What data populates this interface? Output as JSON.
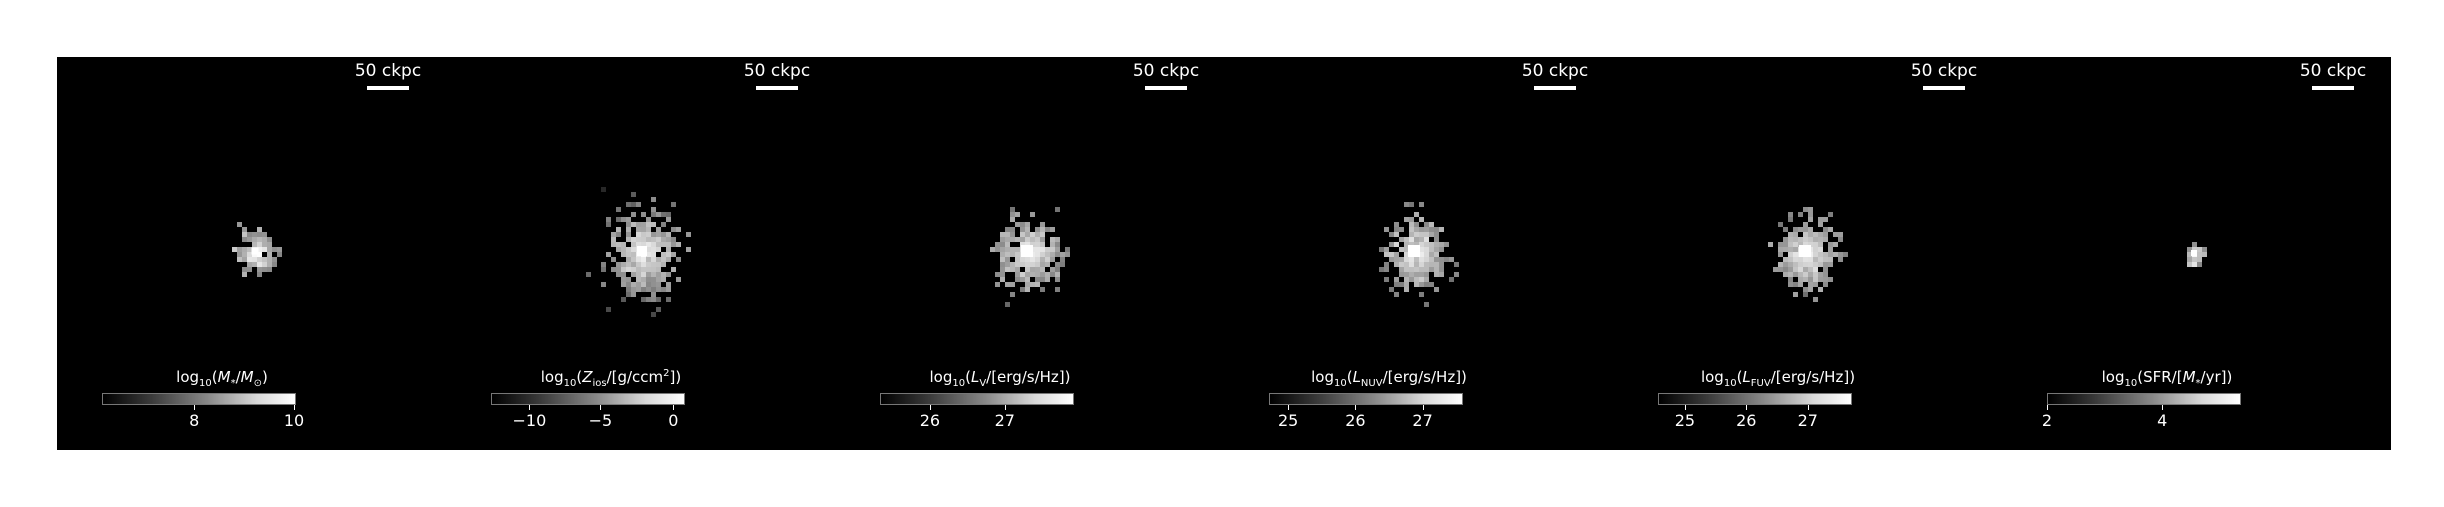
{
  "panels": [
    {
      "scalebar": "50 ckpc",
      "colorbar_label_html": "log<sub>10</sub>(<i>M</i><sub>*</sub>/<i>M</i><sub>⊙</sub>)",
      "ticks": [
        {
          "label": "8",
          "frac": 0.48
        },
        {
          "label": "10",
          "frac": 1.0
        }
      ],
      "map": {
        "cx": 198,
        "cy": 194,
        "core": 7,
        "halo": 20,
        "spread": 30,
        "n": 70,
        "seed": 3
      }
    },
    {
      "scalebar": "50 ckpc",
      "colorbar_label_html": "log<sub>10</sub>(<i>Z</i><sub>ios</sub>/[g/ccm<sup>2</sup>])",
      "ticks": [
        {
          "label": "−10",
          "frac": 0.2
        },
        {
          "label": "−5",
          "frac": 0.57
        },
        {
          "label": "0",
          "frac": 0.95
        }
      ],
      "map": {
        "cx": 196,
        "cy": 194,
        "core": 10,
        "halo": 35,
        "spread": 60,
        "n": 330,
        "seed": 11
      }
    },
    {
      "scalebar": "50 ckpc",
      "colorbar_label_html": "log<sub>10</sub>(<i>L</i><sub>V</sub>/[erg/s/Hz])",
      "ticks": [
        {
          "label": "26",
          "frac": 0.26
        },
        {
          "label": "27",
          "frac": 0.65
        }
      ],
      "map": {
        "cx": 192,
        "cy": 194,
        "core": 12,
        "halo": 30,
        "spread": 50,
        "n": 270,
        "seed": 21
      }
    },
    {
      "scalebar": "50 ckpc",
      "colorbar_label_html": "log<sub>10</sub>(<i>L</i><sub>NUV</sub>/[erg/s/Hz])",
      "ticks": [
        {
          "label": "25",
          "frac": 0.1
        },
        {
          "label": "26",
          "frac": 0.45
        },
        {
          "label": "27",
          "frac": 0.8
        }
      ],
      "map": {
        "cx": 190,
        "cy": 194,
        "core": 12,
        "halo": 30,
        "spread": 50,
        "n": 270,
        "seed": 31
      }
    },
    {
      "scalebar": "50 ckpc",
      "colorbar_label_html": "log<sub>10</sub>(<i>L</i><sub>FUV</sub>/[erg/s/Hz])",
      "ticks": [
        {
          "label": "25",
          "frac": 0.14
        },
        {
          "label": "26",
          "frac": 0.46
        },
        {
          "label": "27",
          "frac": 0.78
        }
      ],
      "map": {
        "cx": 192,
        "cy": 194,
        "core": 12,
        "halo": 30,
        "spread": 50,
        "n": 270,
        "seed": 41
      }
    },
    {
      "scalebar": "50 ckpc",
      "colorbar_label_html": "log<sub>10</sub>(SFR/[<i>M</i><sub>*</sub>/yr])",
      "ticks": [
        {
          "label": "2",
          "frac": 0.0
        },
        {
          "label": "4",
          "frac": 0.6
        }
      ],
      "map": {
        "cx": 192,
        "cy": 196,
        "core": 6,
        "halo": 10,
        "spread": 12,
        "n": 14,
        "seed": 51
      }
    }
  ]
}
